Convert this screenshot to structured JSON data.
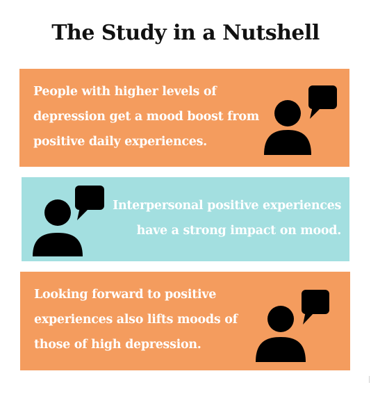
{
  "title": "The Study in a Nutshell",
  "colors": {
    "orange": "#f49c5e",
    "teal": "#a3dfe0",
    "text_on_panel": "#ffffff",
    "icon": "#000000"
  },
  "panels": [
    {
      "text": "People with higher levels of\ndepression get a mood boost from\npositive daily experiences.",
      "icon": "person-speech-bubble-icon"
    },
    {
      "text": "Interpersonal positive experiences\nhave a strong impact on mood.",
      "icon": "person-speech-bubble-icon"
    },
    {
      "text": "Looking forward to positive\nexperiences also lifts moods of\nthose of high depression.",
      "icon": "person-speech-bubble-icon"
    }
  ]
}
